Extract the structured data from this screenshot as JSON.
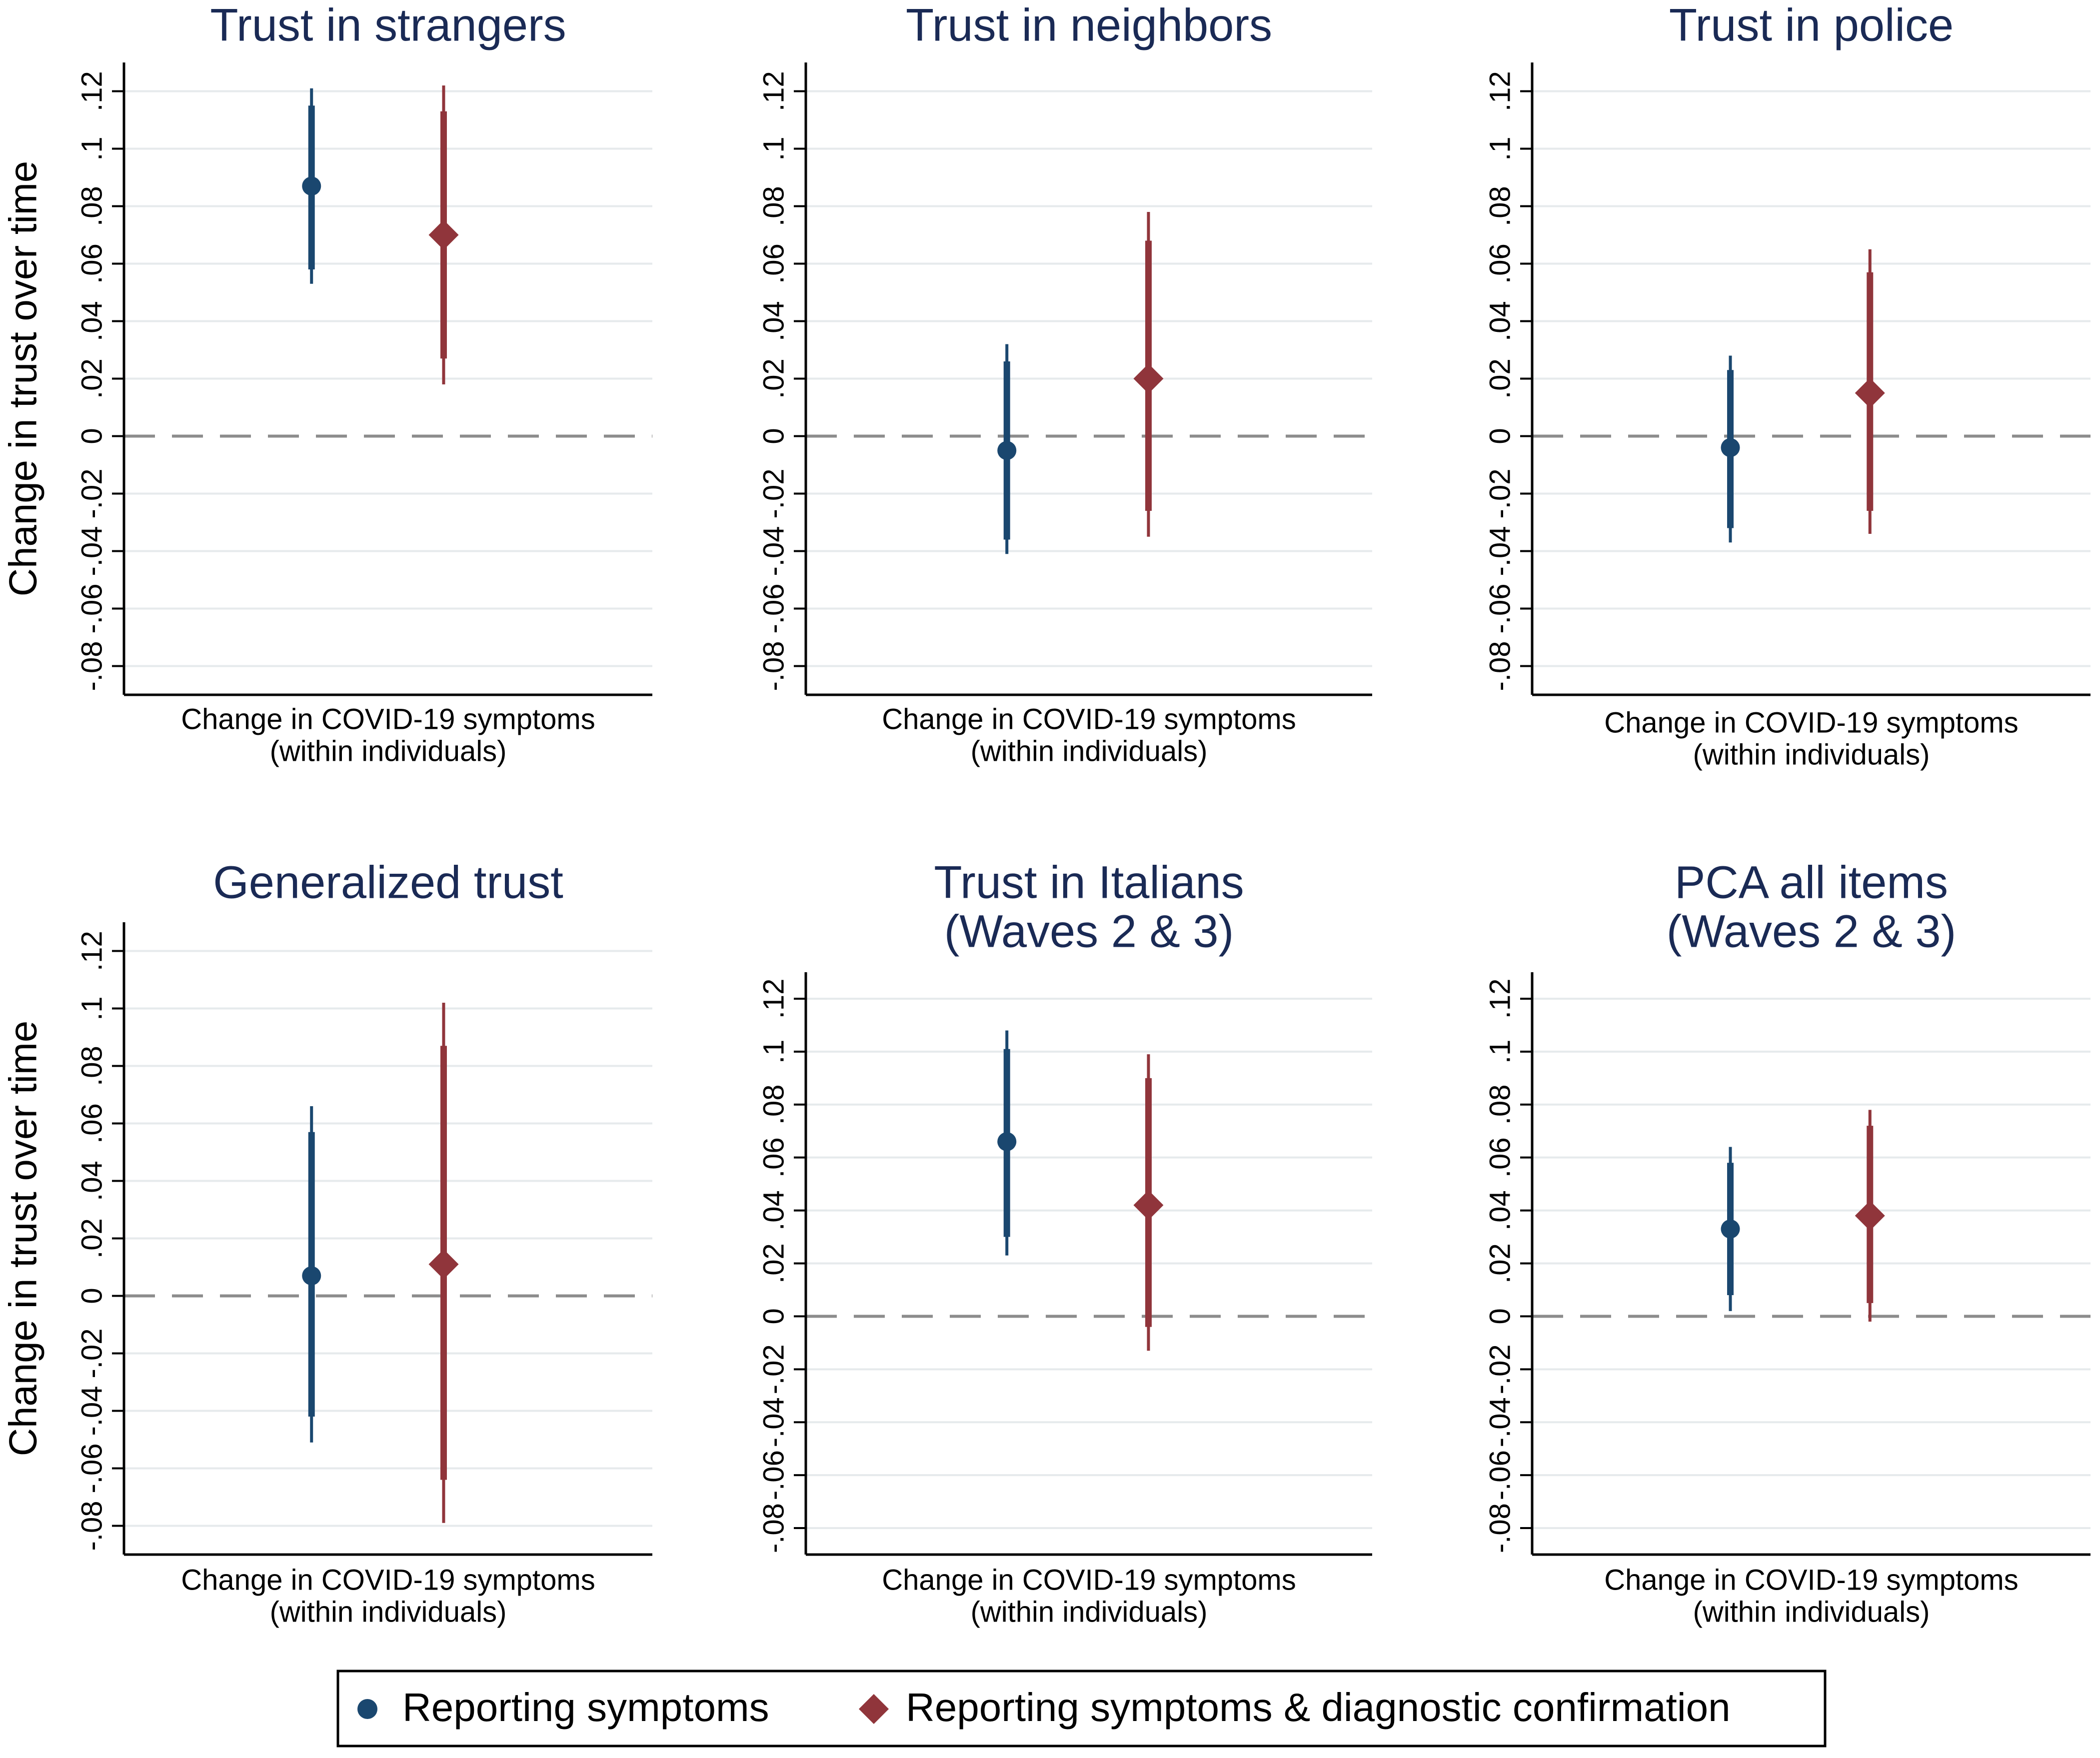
{
  "colors": {
    "blue": "#1a476f",
    "red": "#90353b",
    "title": "#1a2a55",
    "grid": "#e6eaec",
    "zero": "#8c8c8c",
    "axis": "#000000"
  },
  "chart_data": [
    {
      "type": "scatter",
      "title": [
        "Trust in strangers"
      ],
      "ylabel": "Change in trust over time",
      "xlabel": [
        "Change in COVID-19 symptoms",
        "(within individuals)"
      ],
      "ylim": [
        -0.08,
        0.12
      ],
      "yticks": [
        "-.08",
        "-.06",
        "-.04",
        "-.02",
        "0",
        ".02",
        ".04",
        ".06",
        ".08",
        ".1",
        ".12"
      ],
      "reference_line": 0,
      "grid": true,
      "series": [
        {
          "name": "Reporting symptoms",
          "marker": "circle",
          "estimate": 0.087,
          "ci95": [
            0.053,
            0.121
          ],
          "ci90": [
            0.058,
            0.115
          ]
        },
        {
          "name": "Reporting symptoms & diagnostic confirmation",
          "marker": "diamond",
          "estimate": 0.07,
          "ci95": [
            0.018,
            0.122
          ],
          "ci90": [
            0.027,
            0.113
          ]
        }
      ]
    },
    {
      "type": "scatter",
      "title": [
        "Trust in neighbors"
      ],
      "ylabel": "",
      "xlabel": [
        "Change in COVID-19 symptoms",
        "(within individuals)"
      ],
      "ylim": [
        -0.08,
        0.12
      ],
      "yticks": [
        "-.08",
        "-.06",
        "-.04",
        "-.02",
        "0",
        ".02",
        ".04",
        ".06",
        ".08",
        ".1",
        ".12"
      ],
      "reference_line": 0,
      "grid": true,
      "series": [
        {
          "name": "Reporting symptoms",
          "marker": "circle",
          "estimate": -0.005,
          "ci95": [
            -0.041,
            0.032
          ],
          "ci90": [
            -0.036,
            0.026
          ]
        },
        {
          "name": "Reporting symptoms & diagnostic confirmation",
          "marker": "diamond",
          "estimate": 0.02,
          "ci95": [
            -0.035,
            0.078
          ],
          "ci90": [
            -0.026,
            0.068
          ]
        }
      ]
    },
    {
      "type": "scatter",
      "title": [
        "Trust in police"
      ],
      "ylabel": "",
      "xlabel": [
        "Change in COVID-19 symptoms",
        "(within individuals)"
      ],
      "ylim": [
        -0.08,
        0.12
      ],
      "yticks": [
        "-.08",
        "-.06",
        "-.04",
        "-.02",
        "0",
        ".02",
        ".04",
        ".06",
        ".08",
        ".1",
        ".12"
      ],
      "reference_line": 0,
      "grid": true,
      "series": [
        {
          "name": "Reporting symptoms",
          "marker": "circle",
          "estimate": -0.004,
          "ci95": [
            -0.037,
            0.028
          ],
          "ci90": [
            -0.032,
            0.023
          ]
        },
        {
          "name": "Reporting symptoms & diagnostic confirmation",
          "marker": "diamond",
          "estimate": 0.015,
          "ci95": [
            -0.034,
            0.065
          ],
          "ci90": [
            -0.026,
            0.057
          ]
        }
      ]
    },
    {
      "type": "scatter",
      "title": [
        "Generalized trust"
      ],
      "ylabel": "Change in trust over time",
      "xlabel": [
        "Change in COVID-19 symptoms",
        "(within individuals)"
      ],
      "ylim": [
        -0.08,
        0.12
      ],
      "yticks": [
        "-.08",
        "-.06",
        "-.04",
        "-.02",
        "0",
        ".02",
        ".04",
        ".06",
        ".08",
        ".1",
        ".12"
      ],
      "reference_line": 0,
      "grid": true,
      "series": [
        {
          "name": "Reporting symptoms",
          "marker": "circle",
          "estimate": 0.007,
          "ci95": [
            -0.051,
            0.066
          ],
          "ci90": [
            -0.042,
            0.057
          ]
        },
        {
          "name": "Reporting symptoms & diagnostic confirmation",
          "marker": "diamond",
          "estimate": 0.011,
          "ci95": [
            -0.079,
            0.102
          ],
          "ci90": [
            -0.064,
            0.087
          ]
        }
      ]
    },
    {
      "type": "scatter",
      "title": [
        "Trust in Italians",
        "(Waves 2 & 3)"
      ],
      "ylabel": "",
      "xlabel": [
        "Change in COVID-19 symptoms",
        "(within individuals)"
      ],
      "ylim": [
        -0.08,
        0.12
      ],
      "yticks": [
        "-.08",
        "-.06",
        "-.04",
        "-.02",
        "0",
        ".02",
        ".04",
        ".06",
        ".08",
        ".1",
        ".12"
      ],
      "reference_line": 0,
      "grid": true,
      "series": [
        {
          "name": "Reporting symptoms",
          "marker": "circle",
          "estimate": 0.066,
          "ci95": [
            0.023,
            0.108
          ],
          "ci90": [
            0.03,
            0.101
          ]
        },
        {
          "name": "Reporting symptoms & diagnostic confirmation",
          "marker": "diamond",
          "estimate": 0.042,
          "ci95": [
            -0.013,
            0.099
          ],
          "ci90": [
            -0.004,
            0.09
          ]
        }
      ]
    },
    {
      "type": "scatter",
      "title": [
        "PCA all items",
        "(Waves 2 & 3)"
      ],
      "ylabel": "",
      "xlabel": [
        "Change in COVID-19 symptoms",
        "(within individuals)"
      ],
      "ylim": [
        -0.08,
        0.12
      ],
      "yticks": [
        "-.08",
        "-.06",
        "-.04",
        "-.02",
        "0",
        ".02",
        ".04",
        ".06",
        ".08",
        ".1",
        ".12"
      ],
      "reference_line": 0,
      "grid": true,
      "series": [
        {
          "name": "Reporting symptoms",
          "marker": "circle",
          "estimate": 0.033,
          "ci95": [
            0.002,
            0.064
          ],
          "ci90": [
            0.008,
            0.058
          ]
        },
        {
          "name": "Reporting symptoms & diagnostic confirmation",
          "marker": "diamond",
          "estimate": 0.038,
          "ci95": [
            -0.002,
            0.078
          ],
          "ci90": [
            0.005,
            0.072
          ]
        }
      ]
    }
  ],
  "legend": {
    "position": "bottom-center",
    "items": [
      {
        "label": "Reporting symptoms",
        "marker": "circle",
        "color": "#1a476f"
      },
      {
        "label": "Reporting symptoms & diagnostic confirmation",
        "marker": "diamond",
        "color": "#90353b"
      }
    ]
  }
}
